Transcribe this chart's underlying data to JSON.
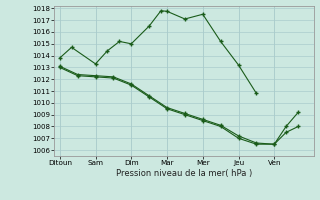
{
  "title": "Pression niveau de la mer( hPa )",
  "background_color": "#cce8e0",
  "grid_color": "#aacccc",
  "line_color": "#1a5c1a",
  "ylim_min": 1006,
  "ylim_max": 1018,
  "yticks": [
    1006,
    1007,
    1008,
    1009,
    1010,
    1011,
    1012,
    1013,
    1014,
    1015,
    1016,
    1017,
    1018
  ],
  "xlabels": [
    "Ditoun",
    "Sam",
    "Dim",
    "Mar",
    "Mer",
    "Jeu",
    "Ven"
  ],
  "xtick_positions": [
    0,
    1,
    2,
    3,
    4,
    5,
    6
  ],
  "line1_x": [
    0.0,
    0.33,
    1.0,
    1.33,
    1.67,
    2.0,
    2.5,
    2.83,
    3.0,
    3.5,
    4.0,
    4.5,
    5.0,
    5.5
  ],
  "line1_y": [
    1013.8,
    1014.7,
    1013.3,
    1014.4,
    1015.2,
    1015.0,
    1016.5,
    1017.8,
    1017.75,
    1017.1,
    1017.5,
    1015.2,
    1013.2,
    1010.8
  ],
  "line2_x": [
    0.0,
    0.5,
    1.0,
    1.5,
    2.0,
    2.5,
    3.0,
    3.5,
    4.0,
    4.5,
    5.0,
    5.5,
    6.0,
    6.33,
    6.67
  ],
  "line2_y": [
    1013.0,
    1012.3,
    1012.2,
    1012.1,
    1011.5,
    1010.5,
    1009.5,
    1009.0,
    1008.5,
    1008.0,
    1007.0,
    1006.5,
    1006.5,
    1007.5,
    1008.0
  ],
  "line3_x": [
    0.0,
    0.5,
    1.0,
    1.5,
    2.0,
    2.5,
    3.0,
    3.5,
    4.0,
    4.5,
    5.0,
    5.5,
    6.0,
    6.33,
    6.67
  ],
  "line3_y": [
    1013.1,
    1012.4,
    1012.3,
    1012.2,
    1011.6,
    1010.6,
    1009.6,
    1009.1,
    1008.6,
    1008.1,
    1007.2,
    1006.6,
    1006.5,
    1008.0,
    1009.2
  ]
}
